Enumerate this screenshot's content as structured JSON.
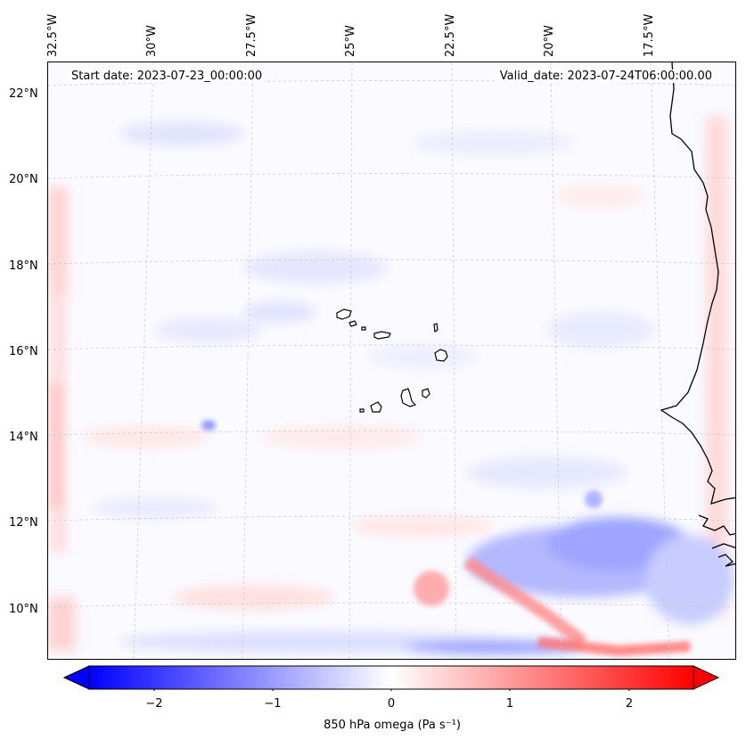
{
  "header": {
    "start_date": "Start date: 2023-07-23_00:00:00",
    "valid_date": "Valid_date: 2023-07-24T06:00:00.00"
  },
  "lon_labels": [
    "32.5°W",
    "30°W",
    "27.5°W",
    "25°W",
    "22.5°W",
    "20°W",
    "17.5°W"
  ],
  "lat_labels": [
    "22°N",
    "20°N",
    "18°N",
    "16°N",
    "14°N",
    "12°N",
    "10°N"
  ],
  "field": {
    "variable": "850 hPa omega",
    "units": "Pa s⁻¹",
    "colormap": "bwr",
    "colors": {
      "negative": "#0000ff",
      "zero": "#ffffff",
      "positive": "#ff0000"
    },
    "range": [
      -2.5,
      2.5
    ],
    "extend": "both"
  },
  "colorbar": {
    "ticks": [
      "−2",
      "−1",
      "0",
      "1",
      "2"
    ],
    "tick_values": [
      -2,
      -1,
      0,
      1,
      2
    ],
    "label": "850 hPa omega (Pa s⁻¹)"
  },
  "map": {
    "gridlines": true,
    "coastline_color": "#000000",
    "features": [
      "Cape Verde islands",
      "West African coast"
    ]
  }
}
